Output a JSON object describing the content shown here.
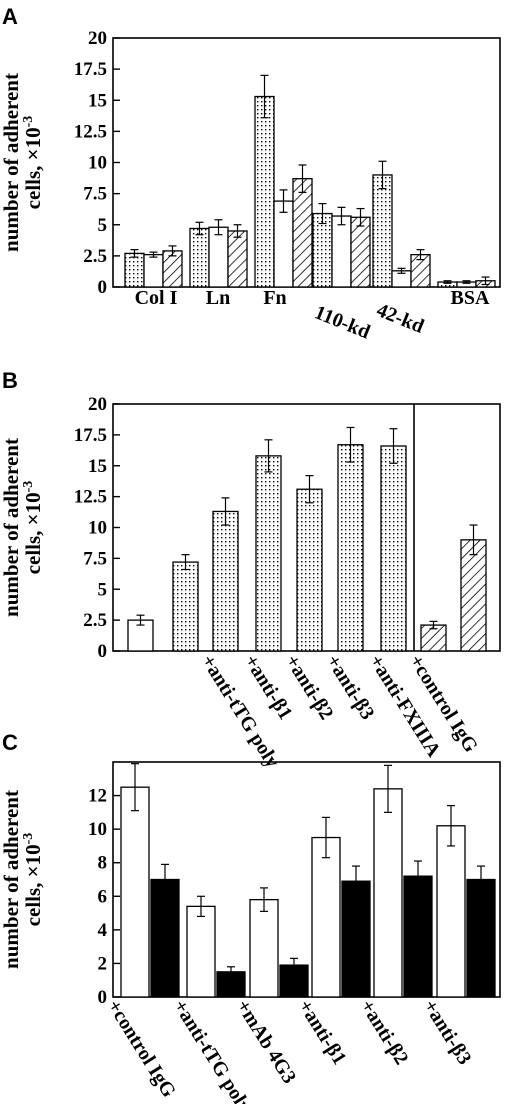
{
  "chart_data": [
    {
      "panel": "A",
      "type": "bar",
      "ylabel_line1": "number of adherent",
      "ylabel_line2": "cells, ×10",
      "ylabel_exp": "-3",
      "ylim": [
        0,
        20
      ],
      "yticks": [
        "0",
        "2.5",
        "5",
        "7.5",
        "10",
        "12.5",
        "15",
        "17.5",
        "20"
      ],
      "categories": [
        "Col I",
        "Ln",
        "Fn",
        "110-kd",
        "42-kd",
        "BSA"
      ],
      "series": [
        {
          "fill": "dotted",
          "values": [
            2.7,
            4.7,
            15.3,
            5.9,
            9.0,
            0.4
          ],
          "errors": [
            0.3,
            0.5,
            1.7,
            0.8,
            1.1,
            0.1
          ]
        },
        {
          "fill": "white",
          "values": [
            2.6,
            4.8,
            6.9,
            5.7,
            1.3,
            0.4
          ],
          "errors": [
            0.2,
            0.6,
            0.9,
            0.7,
            0.2,
            0.1
          ]
        },
        {
          "fill": "hatched",
          "values": [
            2.9,
            4.5,
            8.7,
            5.6,
            2.6,
            0.5
          ],
          "errors": [
            0.4,
            0.5,
            1.1,
            0.7,
            0.4,
            0.3
          ]
        }
      ]
    },
    {
      "panel": "B",
      "type": "bar",
      "ylabel_line1": "number of adherent",
      "ylabel_line2": "cells, ×10",
      "ylabel_exp": "-3",
      "ylim": [
        0,
        20
      ],
      "yticks": [
        "0",
        "2.5",
        "5",
        "7.5",
        "10",
        "12.5",
        "15",
        "17.5",
        "20"
      ],
      "categories": [
        "",
        "",
        "+anti-tTG poly",
        "+anti-β1",
        "+anti-β2",
        "+anti-β3",
        "+anti-FXIIIA",
        "+control IgG",
        ""
      ],
      "bars": [
        {
          "fill": "white",
          "value": 2.5,
          "error": 0.4
        },
        {
          "fill": "dotted",
          "value": 7.2,
          "error": 0.6
        },
        {
          "fill": "dotted",
          "value": 11.3,
          "error": 1.1
        },
        {
          "fill": "dotted",
          "value": 15.8,
          "error": 1.3
        },
        {
          "fill": "dotted",
          "value": 13.1,
          "error": 1.1
        },
        {
          "fill": "dotted",
          "value": 16.7,
          "error": 1.4
        },
        {
          "fill": "dotted",
          "value": 16.6,
          "error": 1.4
        },
        {
          "fill": "hatched",
          "value": 2.1,
          "error": 0.3
        },
        {
          "fill": "hatched",
          "value": 9.0,
          "error": 1.2
        }
      ]
    },
    {
      "panel": "C",
      "type": "bar",
      "ylabel_line1": "number of adherent",
      "ylabel_line2": "cells, ×10",
      "ylabel_exp": "-3",
      "ylim": [
        0,
        14
      ],
      "yticks": [
        "0",
        "2",
        "4",
        "6",
        "8",
        "10",
        "12"
      ],
      "categories": [
        "+control IgG",
        "+anti-tTG poly",
        "+mAb 4G3",
        "+anti-β1",
        "+anti-β2",
        "+anti-β3"
      ],
      "series": [
        {
          "fill": "white",
          "values": [
            12.5,
            5.4,
            5.8,
            9.5,
            12.4,
            10.2
          ],
          "errors": [
            1.4,
            0.6,
            0.7,
            1.2,
            1.4,
            1.2
          ]
        },
        {
          "fill": "black",
          "values": [
            7.0,
            1.5,
            1.9,
            6.9,
            7.2,
            7.0
          ],
          "errors": [
            0.9,
            0.3,
            0.4,
            0.9,
            0.9,
            0.8
          ]
        }
      ]
    }
  ]
}
